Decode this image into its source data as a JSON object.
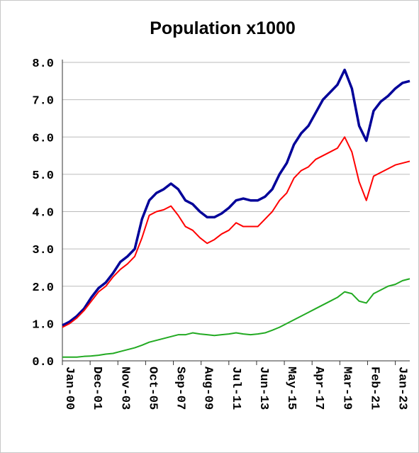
{
  "chart_data": {
    "type": "line",
    "title": "Population x1000",
    "x": [
      0,
      6,
      12,
      18,
      24,
      30,
      36,
      42,
      48,
      54,
      60,
      66,
      72,
      78,
      84,
      90,
      96,
      102,
      108,
      114,
      120,
      126,
      132,
      138,
      144,
      150,
      156,
      162,
      168,
      174,
      180,
      186,
      192,
      198,
      204,
      210,
      216,
      222,
      228,
      234,
      240,
      246,
      252,
      258,
      264,
      270,
      276,
      282,
      288
    ],
    "xlim": [
      0,
      288
    ],
    "xticks": [
      {
        "value": 0,
        "label": "Jan-00"
      },
      {
        "value": 23,
        "label": "Dec-01"
      },
      {
        "value": 46,
        "label": "Nov-03"
      },
      {
        "value": 69,
        "label": "Oct-05"
      },
      {
        "value": 92,
        "label": "Sep-07"
      },
      {
        "value": 115,
        "label": "Aug-09"
      },
      {
        "value": 138,
        "label": "Jul-11"
      },
      {
        "value": 161,
        "label": "Jun-13"
      },
      {
        "value": 184,
        "label": "May-15"
      },
      {
        "value": 207,
        "label": "Apr-17"
      },
      {
        "value": 230,
        "label": "Mar-19"
      },
      {
        "value": 253,
        "label": "Feb-21"
      },
      {
        "value": 276,
        "label": "Jan-23"
      }
    ],
    "ylim": [
      0,
      8
    ],
    "yticks": [
      {
        "value": 0,
        "label": "0.0"
      },
      {
        "value": 1,
        "label": "1.0"
      },
      {
        "value": 2,
        "label": "2.0"
      },
      {
        "value": 3,
        "label": "3.0"
      },
      {
        "value": 4,
        "label": "4.0"
      },
      {
        "value": 5,
        "label": "5.0"
      },
      {
        "value": 6,
        "label": "6.0"
      },
      {
        "value": 7,
        "label": "7.0"
      },
      {
        "value": 8,
        "label": "8.0"
      }
    ],
    "grid": true,
    "series": [
      {
        "color": "#000099",
        "values": [
          0.95,
          1.05,
          1.2,
          1.4,
          1.7,
          1.95,
          2.1,
          2.35,
          2.65,
          2.8,
          3.0,
          3.8,
          4.3,
          4.5,
          4.6,
          4.75,
          4.6,
          4.3,
          4.2,
          4.0,
          3.85,
          3.85,
          3.95,
          4.1,
          4.3,
          4.35,
          4.3,
          4.3,
          4.4,
          4.6,
          5.0,
          5.3,
          5.8,
          6.1,
          6.3,
          6.65,
          7.0,
          7.2,
          7.4,
          7.8,
          7.3,
          6.3,
          5.9,
          6.7,
          6.95,
          7.1,
          7.3,
          7.45,
          7.5
        ]
      },
      {
        "color": "#ff0000",
        "values": [
          0.9,
          1.0,
          1.15,
          1.35,
          1.6,
          1.85,
          2.0,
          2.25,
          2.45,
          2.6,
          2.8,
          3.3,
          3.9,
          4.0,
          4.05,
          4.15,
          3.9,
          3.6,
          3.5,
          3.3,
          3.15,
          3.25,
          3.4,
          3.5,
          3.7,
          3.6,
          3.6,
          3.6,
          3.8,
          4.0,
          4.3,
          4.5,
          4.9,
          5.1,
          5.2,
          5.4,
          5.5,
          5.6,
          5.7,
          6.0,
          5.6,
          4.8,
          4.3,
          4.95,
          5.05,
          5.15,
          5.25,
          5.3,
          5.35
        ]
      },
      {
        "color": "#22aa22",
        "values": [
          0.1,
          0.1,
          0.1,
          0.12,
          0.13,
          0.15,
          0.18,
          0.2,
          0.25,
          0.3,
          0.35,
          0.42,
          0.5,
          0.55,
          0.6,
          0.65,
          0.7,
          0.7,
          0.75,
          0.72,
          0.7,
          0.68,
          0.7,
          0.72,
          0.75,
          0.72,
          0.7,
          0.72,
          0.75,
          0.82,
          0.9,
          1.0,
          1.1,
          1.2,
          1.3,
          1.4,
          1.5,
          1.6,
          1.7,
          1.85,
          1.8,
          1.6,
          1.55,
          1.8,
          1.9,
          2.0,
          2.05,
          2.15,
          2.2
        ]
      }
    ]
  }
}
